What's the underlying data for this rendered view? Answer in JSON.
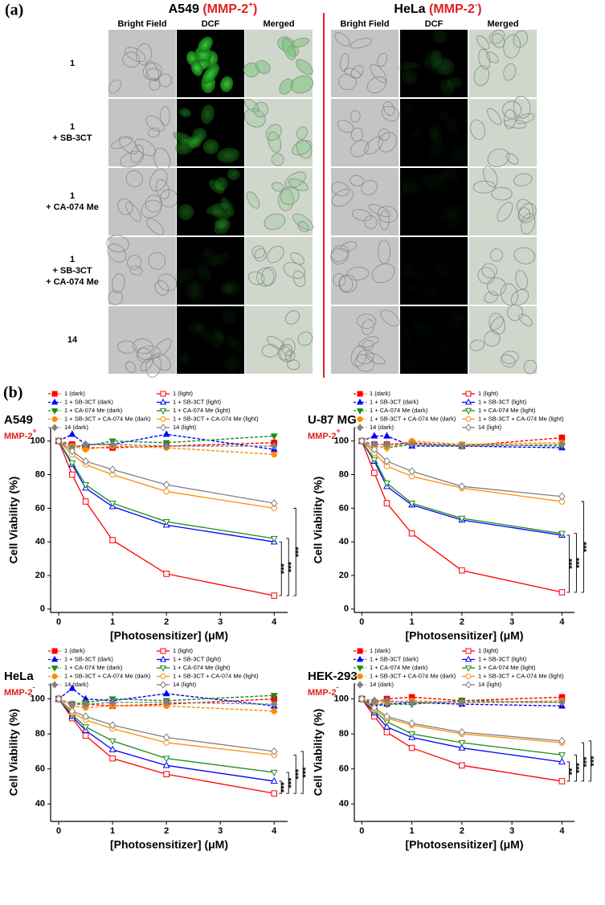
{
  "panel_a": {
    "label": "(a)",
    "groups": [
      {
        "name": "A549",
        "tag": "(MMP-2",
        "sup": "+",
        "close": ")"
      },
      {
        "name": "HeLa",
        "tag": "(MMP-2",
        "sup": "-",
        "close": ")"
      }
    ],
    "columns": [
      "Bright Field",
      "DCF",
      "Merged"
    ],
    "rows": [
      [
        "1"
      ],
      [
        "1",
        "+ SB-3CT"
      ],
      [
        "1",
        "+ CA-074 Me"
      ],
      [
        "1",
        "+ SB-3CT",
        "+ CA-074 Me"
      ],
      [
        "14"
      ]
    ]
  },
  "panel_b": {
    "label": "(b)"
  },
  "chart_data": [
    {
      "type": "line",
      "title": "A549",
      "subtitle": "MMP-2",
      "subtitle_sup": "+",
      "xlabel": "[Photosensitizer] (μM)",
      "ylabel": "Cell Viability (%)",
      "x": [
        0,
        0.25,
        0.5,
        1,
        2,
        4
      ],
      "xlim": [
        -0.15,
        4.25
      ],
      "xticks": [
        0,
        1,
        2,
        3,
        4
      ],
      "ylim": [
        -2,
        108
      ],
      "yticks": [
        0,
        20,
        40,
        60,
        80,
        100
      ],
      "significance": [
        "***",
        "***",
        "***"
      ],
      "series": [
        {
          "name": "1 (dark)",
          "color": "#ff0000",
          "marker": "square",
          "filled": true,
          "dashed": true,
          "values": [
            100,
            98,
            96,
            96,
            97,
            99
          ]
        },
        {
          "name": "1 + SB-3CT (dark)",
          "color": "#0000ff",
          "marker": "triangle-up",
          "filled": true,
          "dashed": true,
          "values": [
            100,
            104,
            98,
            98,
            104,
            95
          ]
        },
        {
          "name": "1 + CA-074 Me (dark)",
          "color": "#1a8a1a",
          "marker": "triangle-down",
          "filled": true,
          "dashed": true,
          "values": [
            100,
            97,
            97,
            100,
            99,
            103
          ]
        },
        {
          "name": "1 + SB-3CT + CA-074 Me (dark)",
          "color": "#ff8c00",
          "marker": "circle",
          "filled": true,
          "dashed": true,
          "values": [
            100,
            97,
            95,
            97,
            96,
            92
          ]
        },
        {
          "name": "14 (dark)",
          "color": "#808080",
          "marker": "diamond",
          "filled": true,
          "dashed": true,
          "values": [
            100,
            96,
            98,
            98,
            97,
            97
          ]
        },
        {
          "name": "1 (light)",
          "color": "#ff0000",
          "marker": "square",
          "filled": false,
          "dashed": false,
          "values": [
            100,
            80,
            64,
            41,
            21,
            8
          ]
        },
        {
          "name": "1 + SB-3CT (light)",
          "color": "#0000ff",
          "marker": "triangle-up",
          "filled": false,
          "dashed": false,
          "values": [
            100,
            86,
            72,
            61,
            50,
            40
          ]
        },
        {
          "name": "1 + CA-074 Me (light)",
          "color": "#1a8a1a",
          "marker": "triangle-down",
          "filled": false,
          "dashed": false,
          "values": [
            100,
            87,
            74,
            63,
            52,
            42
          ]
        },
        {
          "name": "1 + SB-3CT + CA-074 Me (light)",
          "color": "#ff8c00",
          "marker": "circle",
          "filled": false,
          "dashed": false,
          "values": [
            100,
            92,
            86,
            80,
            70,
            60
          ]
        },
        {
          "name": "14 (light)",
          "color": "#808080",
          "marker": "diamond",
          "filled": false,
          "dashed": false,
          "values": [
            100,
            94,
            88,
            83,
            74,
            63
          ]
        }
      ]
    },
    {
      "type": "line",
      "title": "U-87 MG",
      "subtitle": "MMP-2",
      "subtitle_sup": "+",
      "xlabel": "[Photosensitizer] (μM)",
      "ylabel": "Cell Viability (%)",
      "x": [
        0,
        0.25,
        0.5,
        1,
        2,
        4
      ],
      "xlim": [
        -0.15,
        4.25
      ],
      "xticks": [
        0,
        1,
        2,
        3,
        4
      ],
      "ylim": [
        -2,
        108
      ],
      "yticks": [
        0,
        20,
        40,
        60,
        80,
        100
      ],
      "significance": [
        "***",
        "***",
        "***"
      ],
      "series": [
        {
          "name": "1 (dark)",
          "color": "#ff0000",
          "marker": "square",
          "filled": true,
          "dashed": true,
          "values": [
            100,
            98,
            98,
            99,
            97,
            102
          ]
        },
        {
          "name": "1 + SB-3CT (dark)",
          "color": "#0000ff",
          "marker": "triangle-up",
          "filled": true,
          "dashed": true,
          "values": [
            100,
            103,
            103,
            97,
            97,
            96
          ]
        },
        {
          "name": "1 + CA-074 Me (dark)",
          "color": "#1a8a1a",
          "marker": "triangle-down",
          "filled": true,
          "dashed": true,
          "values": [
            100,
            97,
            96,
            98,
            98,
            97
          ]
        },
        {
          "name": "1 + SB-3CT + CA-074 Me (dark)",
          "color": "#ff8c00",
          "marker": "circle",
          "filled": true,
          "dashed": true,
          "values": [
            100,
            97,
            96,
            100,
            98,
            99
          ]
        },
        {
          "name": "14 (dark)",
          "color": "#808080",
          "marker": "diamond",
          "filled": true,
          "dashed": true,
          "values": [
            100,
            98,
            98,
            98,
            97,
            98
          ]
        },
        {
          "name": "1 (light)",
          "color": "#ff0000",
          "marker": "square",
          "filled": false,
          "dashed": false,
          "values": [
            100,
            81,
            63,
            45,
            23,
            10
          ]
        },
        {
          "name": "1 + SB-3CT (light)",
          "color": "#0000ff",
          "marker": "triangle-up",
          "filled": false,
          "dashed": false,
          "values": [
            100,
            88,
            73,
            62,
            53,
            44
          ]
        },
        {
          "name": "1 + CA-074 Me (light)",
          "color": "#1a8a1a",
          "marker": "triangle-down",
          "filled": false,
          "dashed": false,
          "values": [
            100,
            89,
            75,
            63,
            54,
            45
          ]
        },
        {
          "name": "1 + SB-3CT + CA-074 Me (light)",
          "color": "#ff8c00",
          "marker": "circle",
          "filled": false,
          "dashed": false,
          "values": [
            100,
            93,
            85,
            79,
            72,
            64
          ]
        },
        {
          "name": "14 (light)",
          "color": "#808080",
          "marker": "diamond",
          "filled": false,
          "dashed": false,
          "values": [
            100,
            95,
            88,
            82,
            73,
            67
          ]
        }
      ]
    },
    {
      "type": "line",
      "title": "HeLa",
      "subtitle": "MMP-2",
      "subtitle_sup": "-",
      "xlabel": "[Photosensitizer] (μM)",
      "ylabel": "Cell Viability (%)",
      "x": [
        0,
        0.25,
        0.5,
        1,
        2,
        4
      ],
      "xlim": [
        -0.15,
        4.25
      ],
      "xticks": [
        0,
        1,
        2,
        3,
        4
      ],
      "ylim": [
        30,
        109
      ],
      "yticks": [
        40,
        60,
        80,
        100
      ],
      "significance": [
        "***",
        "***",
        "***",
        "***"
      ],
      "series": [
        {
          "name": "1 (dark)",
          "color": "#ff0000",
          "marker": "square",
          "filled": true,
          "dashed": true,
          "values": [
            100,
            97,
            97,
            96,
            97,
            100
          ]
        },
        {
          "name": "1 + SB-3CT (dark)",
          "color": "#0000ff",
          "marker": "triangle-up",
          "filled": true,
          "dashed": true,
          "values": [
            100,
            106,
            100,
            99,
            103,
            96
          ]
        },
        {
          "name": "1 + CA-074 Me (dark)",
          "color": "#1a8a1a",
          "marker": "triangle-down",
          "filled": true,
          "dashed": true,
          "values": [
            100,
            97,
            98,
            100,
            99,
            102
          ]
        },
        {
          "name": "1 + SB-3CT + CA-074 Me (dark)",
          "color": "#ff8c00",
          "marker": "circle",
          "filled": true,
          "dashed": true,
          "values": [
            100,
            96,
            95,
            96,
            96,
            93
          ]
        },
        {
          "name": "14 (dark)",
          "color": "#808080",
          "marker": "diamond",
          "filled": true,
          "dashed": true,
          "values": [
            100,
            97,
            97,
            98,
            98,
            97
          ]
        },
        {
          "name": "1 (light)",
          "color": "#ff0000",
          "marker": "square",
          "filled": false,
          "dashed": false,
          "values": [
            100,
            89,
            79,
            66,
            57,
            46
          ]
        },
        {
          "name": "1 + SB-3CT (light)",
          "color": "#0000ff",
          "marker": "triangle-up",
          "filled": false,
          "dashed": false,
          "values": [
            100,
            90,
            82,
            71,
            62,
            53
          ]
        },
        {
          "name": "1 + CA-074 Me (light)",
          "color": "#1a8a1a",
          "marker": "triangle-down",
          "filled": false,
          "dashed": false,
          "values": [
            100,
            91,
            84,
            76,
            66,
            58
          ]
        },
        {
          "name": "1 + SB-3CT + CA-074 Me (light)",
          "color": "#ff8c00",
          "marker": "circle",
          "filled": false,
          "dashed": false,
          "values": [
            100,
            92,
            88,
            83,
            75,
            68
          ]
        },
        {
          "name": "14 (light)",
          "color": "#808080",
          "marker": "diamond",
          "filled": false,
          "dashed": false,
          "values": [
            100,
            93,
            90,
            85,
            78,
            70
          ]
        }
      ]
    },
    {
      "type": "line",
      "title": "HEK-293",
      "subtitle": "MMP-2",
      "subtitle_sup": "-",
      "xlabel": "[Photosensitizer] (μM)",
      "ylabel": "Cell Viability (%)",
      "x": [
        0,
        0.25,
        0.5,
        1,
        2,
        4
      ],
      "xlim": [
        -0.15,
        4.25
      ],
      "xticks": [
        0,
        1,
        2,
        3,
        4
      ],
      "ylim": [
        30,
        109
      ],
      "yticks": [
        40,
        60,
        80,
        100
      ],
      "significance": [
        "**",
        "***",
        "***",
        "***"
      ],
      "series": [
        {
          "name": "1 (dark)",
          "color": "#ff0000",
          "marker": "square",
          "filled": true,
          "dashed": true,
          "values": [
            100,
            98,
            100,
            101,
            99,
            101
          ]
        },
        {
          "name": "1 + SB-3CT (dark)",
          "color": "#0000ff",
          "marker": "triangle-up",
          "filled": true,
          "dashed": true,
          "values": [
            100,
            96,
            97,
            98,
            97,
            96
          ]
        },
        {
          "name": "1 + CA-074 Me (dark)",
          "color": "#1a8a1a",
          "marker": "triangle-down",
          "filled": true,
          "dashed": true,
          "values": [
            100,
            97,
            97,
            97,
            99,
            98
          ]
        },
        {
          "name": "1 + SB-3CT + CA-074 Me (dark)",
          "color": "#ff8c00",
          "marker": "circle",
          "filled": true,
          "dashed": true,
          "values": [
            100,
            98,
            98,
            99,
            98,
            99
          ]
        },
        {
          "name": "14 (dark)",
          "color": "#808080",
          "marker": "diamond",
          "filled": true,
          "dashed": true,
          "values": [
            100,
            99,
            99,
            98,
            98,
            98
          ]
        },
        {
          "name": "1 (light)",
          "color": "#ff0000",
          "marker": "square",
          "filled": false,
          "dashed": false,
          "values": [
            100,
            90,
            81,
            72,
            62,
            53
          ]
        },
        {
          "name": "1 + SB-3CT (light)",
          "color": "#0000ff",
          "marker": "triangle-up",
          "filled": false,
          "dashed": false,
          "values": [
            100,
            92,
            84,
            78,
            72,
            64
          ]
        },
        {
          "name": "1 + CA-074 Me (light)",
          "color": "#1a8a1a",
          "marker": "triangle-down",
          "filled": false,
          "dashed": false,
          "values": [
            100,
            93,
            87,
            80,
            75,
            68
          ]
        },
        {
          "name": "1 + SB-3CT + CA-074 Me (light)",
          "color": "#ff8c00",
          "marker": "circle",
          "filled": false,
          "dashed": false,
          "values": [
            100,
            94,
            89,
            85,
            80,
            75
          ]
        },
        {
          "name": "14 (light)",
          "color": "#808080",
          "marker": "diamond",
          "filled": false,
          "dashed": false,
          "values": [
            100,
            95,
            90,
            86,
            81,
            76
          ]
        }
      ]
    }
  ]
}
